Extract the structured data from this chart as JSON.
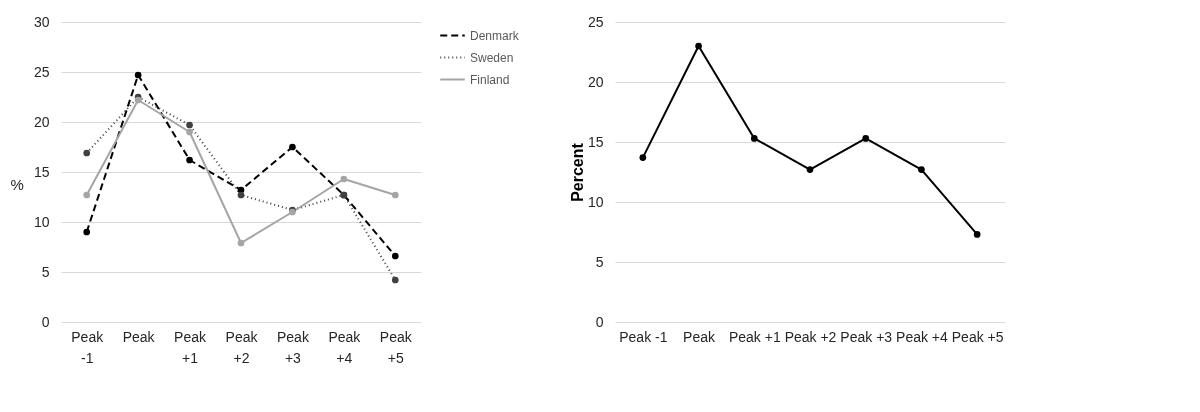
{
  "chart_data": [
    {
      "type": "line",
      "categories": [
        "Peak -1",
        "Peak",
        "Peak +1",
        "Peak +2",
        "Peak +3",
        "Peak +4",
        "Peak +5"
      ],
      "ylabel": "%",
      "ylim": [
        0,
        30
      ],
      "yticks": [
        0,
        5,
        10,
        15,
        20,
        25,
        30
      ],
      "grid": "y",
      "legend": "right",
      "marker": "circle",
      "series": [
        {
          "name": "Denmark",
          "color": "#000000",
          "line_style": "dashed",
          "values": [
            9.0,
            24.7,
            16.2,
            13.2,
            17.5,
            12.7,
            6.6
          ]
        },
        {
          "name": "Sweden",
          "color": "#404040",
          "line_style": "dotted",
          "values": [
            16.9,
            22.5,
            19.7,
            12.7,
            11.2,
            12.7,
            4.2
          ]
        },
        {
          "name": "Finland",
          "color": "#a5a5a5",
          "line_style": "solid",
          "values": [
            12.7,
            22.2,
            19.0,
            7.9,
            11.0,
            14.3,
            12.7
          ]
        }
      ]
    },
    {
      "type": "line",
      "categories": [
        "Peak -1",
        "Peak",
        "Peak +1",
        "Peak +2",
        "Peak +3",
        "Peak +4",
        "Peak +5"
      ],
      "ylabel": "Percent",
      "ylim": [
        0,
        25
      ],
      "yticks": [
        0,
        5,
        10,
        15,
        20,
        25
      ],
      "grid": "y",
      "marker": "circle",
      "series": [
        {
          "color": "#000000",
          "line_style": "solid",
          "values": [
            13.7,
            23.0,
            15.3,
            12.7,
            15.3,
            12.7,
            7.3
          ]
        }
      ]
    }
  ]
}
